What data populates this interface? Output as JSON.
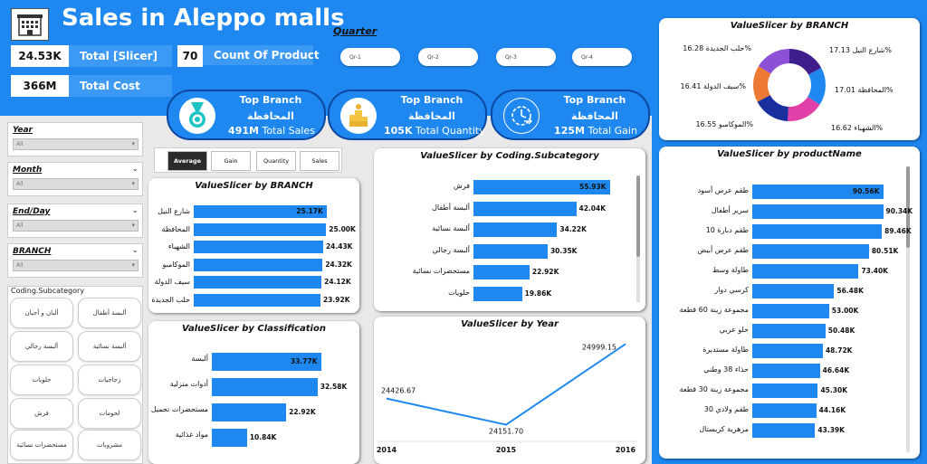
{
  "header": {
    "title": "Sales in Aleppo malls",
    "logo_icon": "building-icon",
    "kpis": [
      {
        "value": "24.53K",
        "label": "Total [Slicer]"
      },
      {
        "value": "70",
        "label": "Count Of Product"
      },
      {
        "value": "366M",
        "label": "Total Cost"
      }
    ],
    "quarter": {
      "title": "Quarter",
      "options": [
        "Qr-1",
        "Qr-2",
        "Qr-3",
        "Qr-4"
      ]
    }
  },
  "top_cards": [
    {
      "icon": "medal-icon",
      "title": "Top Branch",
      "branch": "المحافظة",
      "value": "491M",
      "label": "Total Sales"
    },
    {
      "icon": "trophy-icon",
      "title": "Top Branch",
      "branch": "المحافظة",
      "value": "105K",
      "label": "Total Quantity"
    },
    {
      "icon": "target-clock-icon",
      "title": "Top Branch",
      "branch": "المحافظة",
      "value": "125M",
      "label": "Total Gain"
    }
  ],
  "filters": [
    {
      "label": "Year",
      "value": "All"
    },
    {
      "label": "Month",
      "value": "All"
    },
    {
      "label": "End/Day",
      "value": "All"
    },
    {
      "label": "BRANCH",
      "value": "All"
    }
  ],
  "category_slicer": {
    "label": "Coding.Subcategory",
    "items": [
      "ألبان و أجبان",
      "ألبسة أطفال",
      "ألبسة رجالي",
      "ألبسة نسائية",
      "حلويات",
      "زجاجيات",
      "فرش",
      "لحومات",
      "مستحضرات نسائية",
      "مشروبات"
    ]
  },
  "measure_buttons": {
    "active": "Average",
    "items": [
      "Average",
      "Gain",
      "Quantity",
      "Sales"
    ]
  },
  "colors": {
    "accent": "#1e88f0",
    "panel": "#ffffff",
    "active_button": "#2b2b2b"
  },
  "chart_data": [
    {
      "id": "branch_bar",
      "type": "bar",
      "orientation": "horizontal",
      "title": "ValueSlicer by BRANCH",
      "categories": [
        "شارع النيل",
        "المحافظة",
        "الشهباء",
        "الموكامبو",
        "سيف الدولة",
        "حلب الجديدة"
      ],
      "values": [
        25.17,
        25.0,
        24.43,
        24.32,
        24.12,
        23.92
      ],
      "labels": [
        "25.17K",
        "25.00K",
        "24.43K",
        "24.32K",
        "24.12K",
        "23.92K"
      ],
      "xlim": [
        0,
        27
      ]
    },
    {
      "id": "classification_bar",
      "type": "bar",
      "orientation": "horizontal",
      "title": "ValueSlicer by Classification",
      "categories": [
        "ألبسة",
        "أدوات منزلية",
        "مستحضرات تجميل",
        "مواد غذائية"
      ],
      "values": [
        33.77,
        32.58,
        22.92,
        10.84
      ],
      "labels": [
        "33.77K",
        "32.58K",
        "22.92K",
        "10.84K"
      ],
      "xlim": [
        0,
        36
      ]
    },
    {
      "id": "subcategory_bar",
      "type": "bar",
      "orientation": "horizontal",
      "title": "ValueSlicer by Coding.Subcategory",
      "categories": [
        "فرش",
        "ألبسة أطفال",
        "ألبسة نسائية",
        "ألبسة رجالي",
        "مستحضرات نسائية",
        "حلويات"
      ],
      "values": [
        55.93,
        42.04,
        34.22,
        30.35,
        22.92,
        19.86
      ],
      "labels": [
        "55.93K",
        "42.04K",
        "34.22K",
        "30.35K",
        "22.92K",
        "19.86K"
      ],
      "xlim": [
        0,
        60
      ]
    },
    {
      "id": "year_line",
      "type": "line",
      "title": "ValueSlicer by Year",
      "x": [
        "2014",
        "2015",
        "2016"
      ],
      "values": [
        24426.67,
        24151.7,
        24999.15
      ],
      "labels": [
        "24426.67",
        "24151.70",
        "24999.15"
      ],
      "ylim": [
        24100,
        25050
      ]
    },
    {
      "id": "branch_donut",
      "type": "pie",
      "title": "ValueSlicer by BRANCH",
      "categories": [
        "شارع النيل",
        "المحافظة",
        "الشهباء",
        "الموكامبو",
        "سيف الدولة",
        "حلب الجديدة"
      ],
      "values": [
        17.13,
        17.01,
        16.62,
        16.55,
        16.41,
        16.28
      ],
      "labels": [
        "17.13%",
        "17.01%",
        "16.62%",
        "16.55%",
        "16.41%",
        "16.28%"
      ],
      "colors": [
        "#3f1e8c",
        "#1e88f0",
        "#e040a8",
        "#1a2f9e",
        "#ec7a34",
        "#8d4fd6"
      ]
    },
    {
      "id": "product_bar",
      "type": "bar",
      "orientation": "horizontal",
      "title": "ValueSlicer by productName",
      "categories": [
        "طقم عرس أسود",
        "سرير أطفال",
        "طقم دبارة 10",
        "طقم عرس أبيض",
        "طاولة وسط",
        "كرسي دوار",
        "مجموعة زينة 60 قطعة",
        "حلو عربي",
        "طاولة مستديرة",
        "حذاء 38 وطني",
        "مجموعة زينة 30 قطعة",
        "طقم ولادي 30",
        "مزهرية كريستال"
      ],
      "values": [
        90.56,
        90.34,
        89.46,
        80.51,
        73.4,
        56.48,
        53.0,
        50.48,
        48.72,
        46.64,
        45.3,
        44.16,
        43.39
      ],
      "labels": [
        "90.56K",
        "90.34K",
        "89.46K",
        "80.51K",
        "73.40K",
        "56.48K",
        "53.00K",
        "50.48K",
        "48.72K",
        "46.64K",
        "45.30K",
        "44.16K",
        "43.39K"
      ],
      "xlim": [
        0,
        100
      ]
    }
  ]
}
